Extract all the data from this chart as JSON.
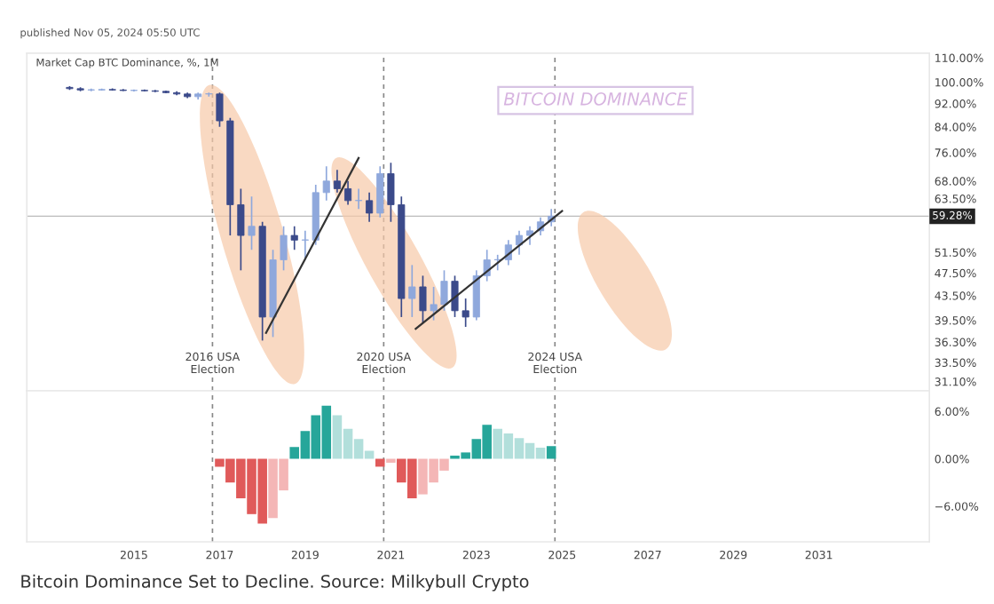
{
  "chart_data": [
    {
      "type": "candlestick",
      "title": "published Nov 05, 2024 05:50 UTC",
      "subtitle": "Market Cap BTC Dominance, %, 1M",
      "annotations": [
        "BITCOIN DOMINANCE",
        "Bitcoin Dominance Set to Decline. Source: Milkybull Crypto"
      ],
      "x": [
        "2013-07",
        "2013-10",
        "2014-01",
        "2014-04",
        "2014-07",
        "2014-10",
        "2015-01",
        "2015-04",
        "2015-07",
        "2015-10",
        "2016-01",
        "2016-04",
        "2016-07",
        "2016-10",
        "2017-01",
        "2017-04",
        "2017-07",
        "2017-10",
        "2018-01",
        "2018-04",
        "2018-07",
        "2018-10",
        "2019-01",
        "2019-04",
        "2019-07",
        "2019-10",
        "2020-01",
        "2020-04",
        "2020-07",
        "2020-10",
        "2021-01",
        "2021-04",
        "2021-07",
        "2021-10",
        "2022-01",
        "2022-04",
        "2022-07",
        "2022-10",
        "2023-01",
        "2023-04",
        "2023-07",
        "2023-10",
        "2024-01",
        "2024-04",
        "2024-07",
        "2024-10"
      ],
      "ohlc": [
        [
          98,
          98.5,
          97,
          97.5
        ],
        [
          97.5,
          98,
          96.5,
          97
        ],
        [
          97,
          97.5,
          96.5,
          97
        ],
        [
          97,
          97.5,
          96.8,
          97.2
        ],
        [
          97.2,
          97.6,
          96.8,
          97
        ],
        [
          97,
          97.4,
          96.6,
          96.8
        ],
        [
          96.8,
          97.2,
          96.4,
          96.9
        ],
        [
          96.9,
          97.2,
          96.5,
          96.7
        ],
        [
          96.7,
          97,
          96.2,
          96.5
        ],
        [
          96.5,
          96.8,
          95.8,
          96
        ],
        [
          96,
          96.5,
          95,
          95.5
        ],
        [
          95.5,
          96,
          94,
          94.5
        ],
        [
          94.5,
          96,
          93.5,
          95.5
        ],
        [
          95.5,
          96,
          94.5,
          95.5
        ],
        [
          95.5,
          96,
          84,
          86
        ],
        [
          86,
          87,
          55,
          62
        ],
        [
          62,
          66,
          48,
          55
        ],
        [
          55,
          64,
          52,
          57
        ],
        [
          57,
          58,
          36.5,
          40
        ],
        [
          40,
          52,
          37,
          50
        ],
        [
          50,
          57,
          48,
          55
        ],
        [
          55,
          57,
          52,
          54
        ],
        [
          54,
          56,
          50,
          54
        ],
        [
          54,
          67,
          53,
          65
        ],
        [
          65,
          72,
          63,
          68
        ],
        [
          68,
          71,
          65,
          66
        ],
        [
          66,
          68,
          62,
          63
        ],
        [
          63,
          66,
          61,
          63
        ],
        [
          63,
          65,
          58,
          60
        ],
        [
          60,
          72,
          59,
          70
        ],
        [
          70,
          73,
          58,
          62
        ],
        [
          62,
          64,
          40,
          43
        ],
        [
          43,
          49,
          40,
          45
        ],
        [
          45,
          47,
          39,
          41
        ],
        [
          41,
          45,
          39.5,
          42
        ],
        [
          42,
          48,
          41,
          46
        ],
        [
          46,
          47,
          40,
          41
        ],
        [
          41,
          43,
          38.5,
          40
        ],
        [
          40,
          48,
          39.5,
          47
        ],
        [
          47,
          52,
          46,
          50
        ],
        [
          50,
          51,
          48,
          50
        ],
        [
          50,
          54,
          49,
          53
        ],
        [
          53,
          56,
          51,
          55
        ],
        [
          55,
          57,
          53,
          56
        ],
        [
          56,
          59,
          55,
          58
        ],
        [
          58,
          61,
          57,
          59.28
        ]
      ],
      "colors": [
        "#3b4a8a",
        "#3b4a8a",
        "#8fa8dc",
        "#8fa8dc",
        "#3b4a8a",
        "#3b4a8a",
        "#8fa8dc",
        "#3b4a8a",
        "#3b4a8a",
        "#3b4a8a",
        "#3b4a8a",
        "#3b4a8a",
        "#8fa8dc",
        "#8fa8dc",
        "#3b4a8a",
        "#3b4a8a",
        "#3b4a8a",
        "#8fa8dc",
        "#3b4a8a",
        "#8fa8dc",
        "#8fa8dc",
        "#3b4a8a",
        "#8fa8dc",
        "#8fa8dc",
        "#8fa8dc",
        "#3b4a8a",
        "#3b4a8a",
        "#8fa8dc",
        "#3b4a8a",
        "#8fa8dc",
        "#3b4a8a",
        "#3b4a8a",
        "#8fa8dc",
        "#3b4a8a",
        "#8fa8dc",
        "#8fa8dc",
        "#3b4a8a",
        "#3b4a8a",
        "#8fa8dc",
        "#8fa8dc",
        "#8fa8dc",
        "#8fa8dc",
        "#8fa8dc",
        "#8fa8dc",
        "#8fa8dc",
        "#8fa8dc"
      ],
      "series": [
        {
          "type": "line",
          "color": "#333333",
          "x": [
            "2018-02",
            "2020-04"
          ],
          "values": [
            37.6,
            74.4
          ]
        },
        {
          "type": "line",
          "color": "#333333",
          "x": [
            "2021-08",
            "2025-01"
          ],
          "values": [
            38.2,
            60.5
          ]
        }
      ],
      "log": true,
      "xlim": [
        "2012-07",
        "2033-08"
      ],
      "ylim": [
        30,
        112
      ],
      "yticks": [
        {
          "value": 110,
          "label": "110.00%"
        },
        {
          "value": 100,
          "label": "100.00%"
        },
        {
          "value": 92,
          "label": "92.00%"
        },
        {
          "value": 84,
          "label": "84.00%"
        },
        {
          "value": 76,
          "label": "76.00%"
        },
        {
          "value": 68,
          "label": "68.00%"
        },
        {
          "value": 63.5,
          "label": "63.50%"
        },
        {
          "value": 51.5,
          "label": "51.50%"
        },
        {
          "value": 47.5,
          "label": "47.50%"
        },
        {
          "value": 43.5,
          "label": "43.50%"
        },
        {
          "value": 39.5,
          "label": "39.50%"
        },
        {
          "value": 36.3,
          "label": "36.30%"
        },
        {
          "value": 33.5,
          "label": "33.50%"
        },
        {
          "value": 31.1,
          "label": "31.10%"
        }
      ],
      "ref_lines": [
        {
          "axis": "y",
          "value": 59.28,
          "label": "59.28%",
          "color": "#bbbbbb",
          "line_style": "solid"
        },
        {
          "axis": "x",
          "value": "2016-11",
          "label": "2016 USA\nElection",
          "color": "#888888",
          "line_style": "dashed"
        },
        {
          "axis": "x",
          "value": "2020-11",
          "label": "2020 USA\nElection",
          "color": "#888888",
          "line_style": "dashed"
        },
        {
          "axis": "x",
          "value": "2024-11",
          "label": "2024 USA\nElection",
          "color": "#888888",
          "line_style": "dashed"
        }
      ],
      "tick_labels": "y",
      "grid": false
    },
    {
      "type": "bar",
      "x": [
        "2017-01",
        "2017-04",
        "2017-07",
        "2017-10",
        "2018-01",
        "2018-04",
        "2018-07",
        "2018-10",
        "2019-01",
        "2019-04",
        "2019-07",
        "2019-10",
        "2020-01",
        "2020-04",
        "2020-07",
        "2020-10",
        "2021-01",
        "2021-04",
        "2021-07",
        "2021-10",
        "2022-01",
        "2022-04",
        "2022-07",
        "2022-10",
        "2023-01",
        "2023-04",
        "2023-07",
        "2023-10",
        "2024-01",
        "2024-04",
        "2024-07",
        "2024-10"
      ],
      "values": [
        -1,
        -3,
        -5,
        -7,
        -8.2,
        -7.5,
        -4,
        1.5,
        3.5,
        5.5,
        6.7,
        5.5,
        3.8,
        2.5,
        1,
        -1,
        -0.5,
        -3,
        -5,
        -4.5,
        -3,
        -1.5,
        0.4,
        0.8,
        2.5,
        4.3,
        3.8,
        3.2,
        2.6,
        2,
        1.4,
        1.6
      ],
      "colors": [
        "#e05a5a",
        "#e05a5a",
        "#e05a5a",
        "#e05a5a",
        "#e05a5a",
        "#f4b6b6",
        "#f4b6b6",
        "#26a69a",
        "#26a69a",
        "#26a69a",
        "#26a69a",
        "#b2dfdb",
        "#b2dfdb",
        "#b2dfdb",
        "#b2dfdb",
        "#e05a5a",
        "#f4b6b6",
        "#e05a5a",
        "#e05a5a",
        "#f4b6b6",
        "#f4b6b6",
        "#f4b6b6",
        "#26a69a",
        "#26a69a",
        "#26a69a",
        "#26a69a",
        "#b2dfdb",
        "#b2dfdb",
        "#b2dfdb",
        "#b2dfdb",
        "#b2dfdb",
        "#26a69a"
      ],
      "xlim": [
        "2012-07",
        "2033-08"
      ],
      "ylim": [
        -10.5,
        8.6
      ],
      "xticks": [
        {
          "value": "2015-01",
          "label": "2015"
        },
        {
          "value": "2017-01",
          "label": "2017"
        },
        {
          "value": "2019-01",
          "label": "2019"
        },
        {
          "value": "2021-01",
          "label": "2021"
        },
        {
          "value": "2023-01",
          "label": "2023"
        },
        {
          "value": "2025-01",
          "label": "2025"
        },
        {
          "value": "2027-01",
          "label": "2027"
        },
        {
          "value": "2029-01",
          "label": "2029"
        },
        {
          "value": "2031-01",
          "label": "2031"
        }
      ],
      "yticks": [
        {
          "value": 6,
          "label": "6.00%"
        },
        {
          "value": 0,
          "label": "0.00%"
        },
        {
          "value": -6,
          "label": "−6.00%"
        }
      ],
      "ref_lines": [
        {
          "axis": "x",
          "value": "2016-11",
          "color": "#888888",
          "line_style": "dashed"
        },
        {
          "axis": "x",
          "value": "2020-11",
          "color": "#888888",
          "line_style": "dashed"
        },
        {
          "axis": "x",
          "value": "2024-11",
          "color": "#888888",
          "line_style": "dashed"
        }
      ],
      "grid": false
    }
  ]
}
